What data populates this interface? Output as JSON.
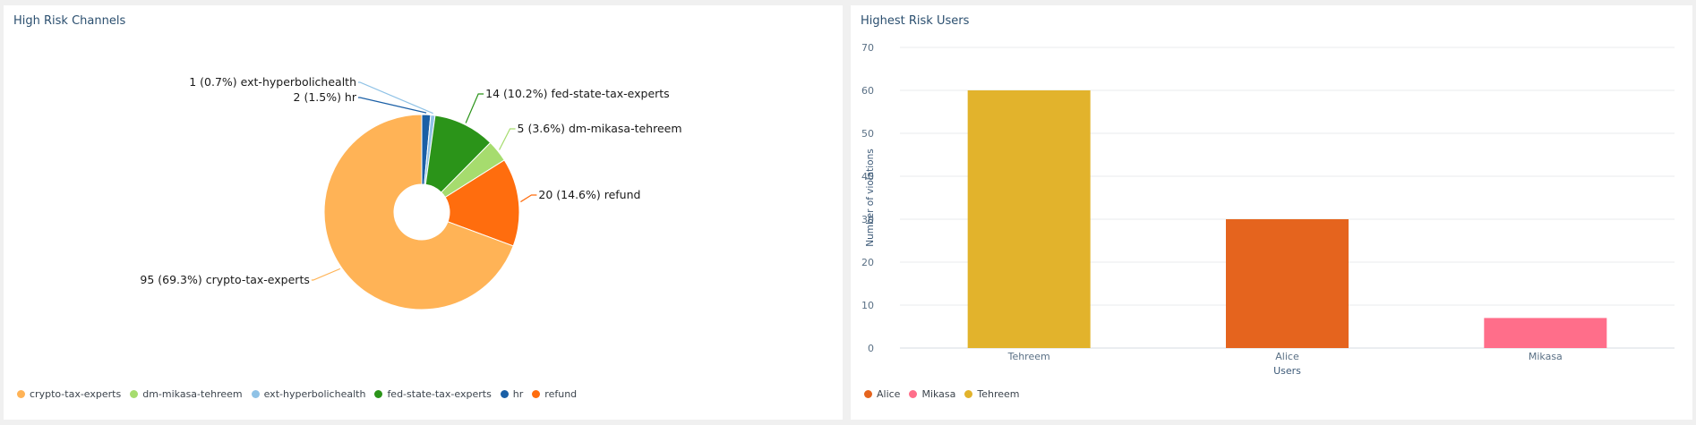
{
  "colors": {
    "crypto": "#ffb356",
    "dm": "#a6dc6e",
    "ext": "#8fc2e6",
    "fed": "#2b9419",
    "hr": "#1a5fa6",
    "refund": "#ff6d0e",
    "alice": "#e5641e",
    "mikasa": "#ff6e8a",
    "tehreem": "#e2b32c"
  },
  "left": {
    "title": "High Risk Channels",
    "legend": [
      {
        "label": "crypto-tax-experts",
        "color": "#ffb356"
      },
      {
        "label": "dm-mikasa-tehreem",
        "color": "#a6dc6e"
      },
      {
        "label": "ext-hyperbolichealth",
        "color": "#8fc2e6"
      },
      {
        "label": "fed-state-tax-experts",
        "color": "#2b9419"
      },
      {
        "label": "hr",
        "color": "#1a5fa6"
      },
      {
        "label": "refund",
        "color": "#ff6d0e"
      }
    ]
  },
  "right": {
    "title": "Highest Risk Users",
    "legend": [
      {
        "label": "Alice",
        "color": "#e5641e"
      },
      {
        "label": "Mikasa",
        "color": "#ff6e8a"
      },
      {
        "label": "Tehreem",
        "color": "#e2b32c"
      }
    ]
  },
  "chart_data": [
    {
      "type": "pie",
      "title": "High Risk Channels",
      "donut": true,
      "slices": [
        {
          "name": "hr",
          "value": 2,
          "percent": "1.5%",
          "label": "2 (1.5%) hr",
          "color": "#1a5fa6"
        },
        {
          "name": "ext-hyperbolichealth",
          "value": 1,
          "percent": "0.7%",
          "label": "1 (0.7%) ext-hyperbolichealth",
          "color": "#8fc2e6"
        },
        {
          "name": "fed-state-tax-experts",
          "value": 14,
          "percent": "10.2%",
          "label": "14 (10.2%) fed-state-tax-experts",
          "color": "#2b9419"
        },
        {
          "name": "dm-mikasa-tehreem",
          "value": 5,
          "percent": "3.6%",
          "label": "5 (3.6%) dm-mikasa-tehreem",
          "color": "#a6dc6e"
        },
        {
          "name": "refund",
          "value": 20,
          "percent": "14.6%",
          "label": "20 (14.6%) refund",
          "color": "#ff6d0e"
        },
        {
          "name": "crypto-tax-experts",
          "value": 95,
          "percent": "69.3%",
          "label": "95 (69.3%) crypto-tax-experts",
          "color": "#ffb356"
        }
      ],
      "legend_position": "bottom"
    },
    {
      "type": "bar",
      "title": "Highest Risk Users",
      "categories": [
        "Tehreem",
        "Alice",
        "Mikasa"
      ],
      "values": [
        60,
        30,
        7
      ],
      "colors": [
        "#e2b32c",
        "#e5641e",
        "#ff6e8a"
      ],
      "xlabel": "Users",
      "ylabel": "Number of violations",
      "ylim": [
        0,
        70
      ],
      "yticks": [
        0,
        10,
        20,
        30,
        40,
        50,
        60,
        70
      ],
      "grid": true,
      "legend_position": "bottom"
    }
  ]
}
